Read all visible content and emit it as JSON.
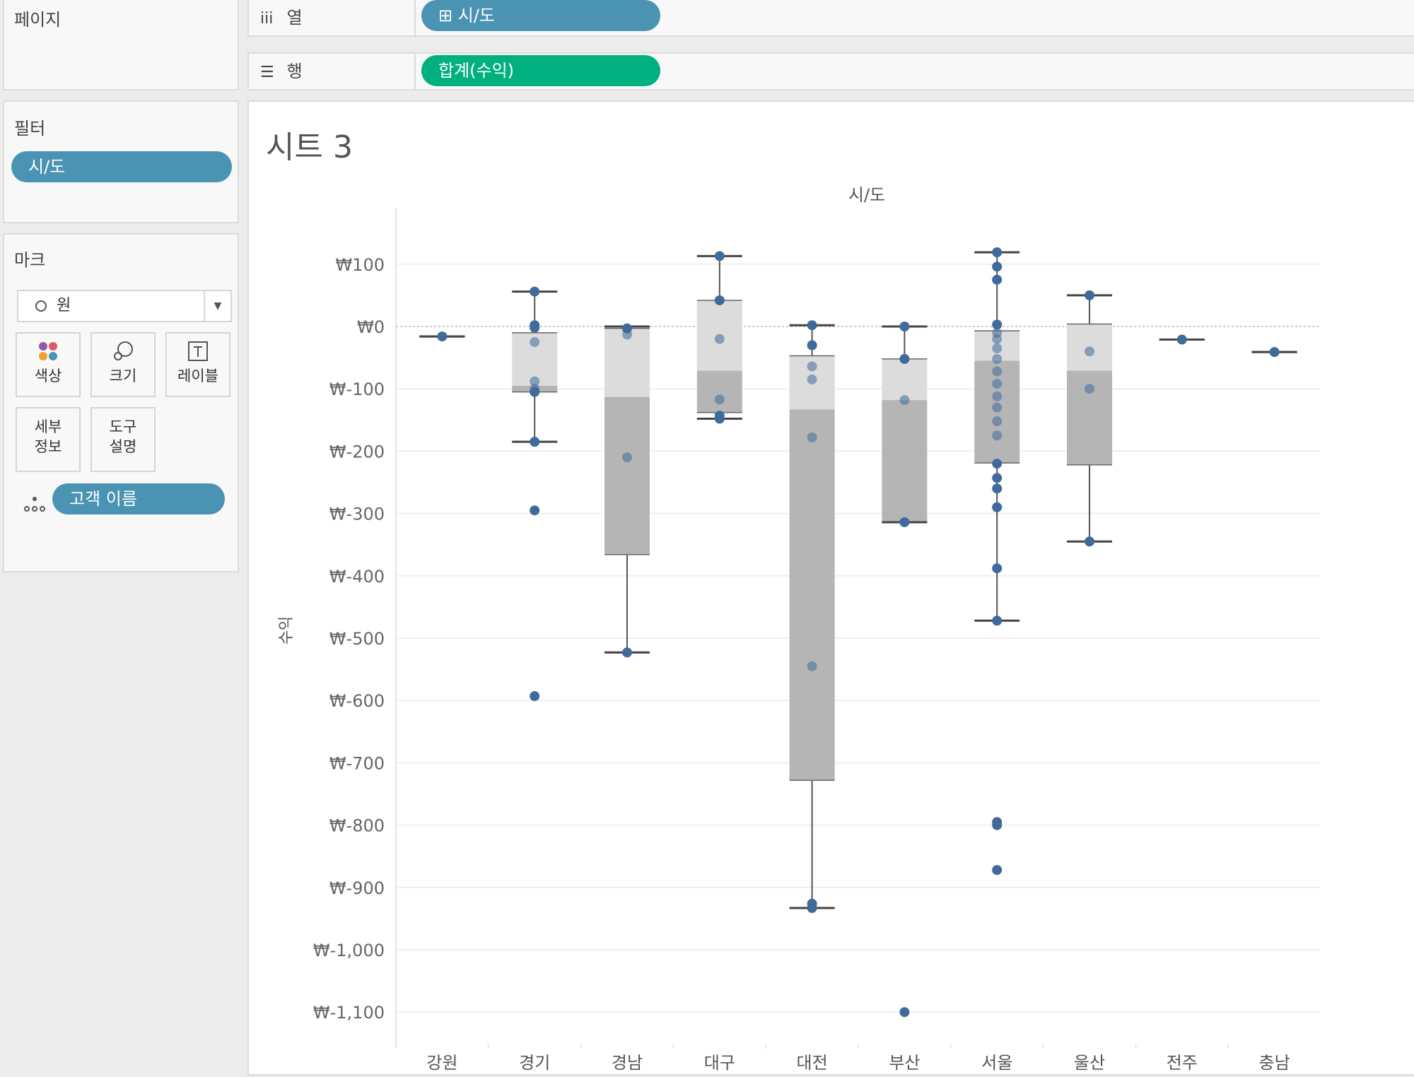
{
  "pages_card": {
    "title": "페이지"
  },
  "columns_shelf": {
    "label": "열",
    "icon": "iii",
    "pill": "⊞ 시/도"
  },
  "rows_shelf": {
    "label": "행",
    "icon": "☰",
    "pill": "합계(수익)"
  },
  "filters_card": {
    "title": "필터",
    "pill": "시/도"
  },
  "marks_card": {
    "title": "마크",
    "mark_type": "원",
    "buttons": {
      "color": "색상",
      "size": "크기",
      "label": "레이블",
      "detail_1": "세부",
      "detail_2": "정보",
      "tooltip_1": "도구",
      "tooltip_2": "설명"
    },
    "detail_pill": "고객 이름"
  },
  "sheet": {
    "title": "시트 3"
  },
  "colors": {
    "pill_blue": "#4a93b3",
    "pill_green": "#00b07e",
    "dot": "#3f6a9a",
    "box_upper": "#dcdcdc",
    "box_lower": "#b5b5b5"
  },
  "chart_data": {
    "type": "box-plot",
    "column_header": "시/도",
    "ylabel": "수익",
    "ylim": [
      -1150,
      170
    ],
    "y_ticks": [
      100,
      0,
      -100,
      -200,
      -300,
      -400,
      -500,
      -600,
      -700,
      -800,
      -900,
      -1000,
      -1100
    ],
    "y_tick_labels": [
      "₩100",
      "₩0",
      "₩-100",
      "₩-200",
      "₩-300",
      "₩-400",
      "₩-500",
      "₩-600",
      "₩-700",
      "₩-800",
      "₩-900",
      "₩-1,000",
      "₩-1,100"
    ],
    "categories": [
      "강원",
      "경기",
      "경남",
      "대구",
      "대전",
      "부산",
      "서울",
      "울산",
      "전주",
      "충남"
    ],
    "boxes": [
      {
        "category": "강원",
        "whisker_low": -16,
        "q1": -16,
        "median": -16,
        "q3": -16,
        "whisker_high": -16
      },
      {
        "category": "경기",
        "whisker_low": -185,
        "q1": -105,
        "median": -95,
        "q3": -10,
        "whisker_high": 56
      },
      {
        "category": "경남",
        "whisker_low": -523,
        "q1": -366,
        "median": -113,
        "q3": -3,
        "whisker_high": 0
      },
      {
        "category": "대구",
        "whisker_low": -148,
        "q1": -138,
        "median": -71,
        "q3": 42,
        "whisker_high": 113
      },
      {
        "category": "대전",
        "whisker_low": -933,
        "q1": -728,
        "median": -133,
        "q3": -47,
        "whisker_high": 2
      },
      {
        "category": "부산",
        "whisker_low": -314,
        "q1": -314,
        "median": -118,
        "q3": -52,
        "whisker_high": 0
      },
      {
        "category": "서울",
        "whisker_low": -472,
        "q1": -219,
        "median": -55,
        "q3": -7,
        "whisker_high": 119
      },
      {
        "category": "울산",
        "whisker_low": -345,
        "q1": -222,
        "median": -71,
        "q3": 4,
        "whisker_high": 50
      },
      {
        "category": "전주",
        "whisker_low": -21,
        "q1": -21,
        "median": -21,
        "q3": -21,
        "whisker_high": -21
      },
      {
        "category": "충남",
        "whisker_low": -41,
        "q1": -41,
        "median": -41,
        "q3": -41,
        "whisker_high": -41
      }
    ],
    "points": [
      {
        "category": "강원",
        "values": [
          -16
        ]
      },
      {
        "category": "경기",
        "values": [
          56,
          2,
          -2,
          -25,
          -88,
          -100,
          -105,
          -185,
          -295,
          -593
        ]
      },
      {
        "category": "경남",
        "values": [
          -3,
          -13,
          -210,
          -523
        ]
      },
      {
        "category": "대구",
        "values": [
          113,
          42,
          -20,
          -117,
          -143,
          -148
        ]
      },
      {
        "category": "대전",
        "values": [
          2,
          -30,
          -64,
          -85,
          -178,
          -545,
          -926,
          -933
        ]
      },
      {
        "category": "부산",
        "values": [
          0,
          -52,
          -118,
          -314,
          -1100
        ]
      },
      {
        "category": "서울",
        "values": [
          119,
          96,
          75,
          3,
          -10,
          -20,
          -35,
          -52,
          -72,
          -92,
          -112,
          -130,
          -152,
          -175,
          -220,
          -243,
          -260,
          -290,
          -388,
          -472,
          -795,
          -800,
          -872
        ]
      },
      {
        "category": "울산",
        "values": [
          50,
          -40,
          -100,
          -345
        ]
      },
      {
        "category": "전주",
        "values": [
          -21
        ]
      },
      {
        "category": "충남",
        "values": [
          -41
        ]
      }
    ],
    "reference_line": 0,
    "grid": true,
    "legend": "none"
  }
}
